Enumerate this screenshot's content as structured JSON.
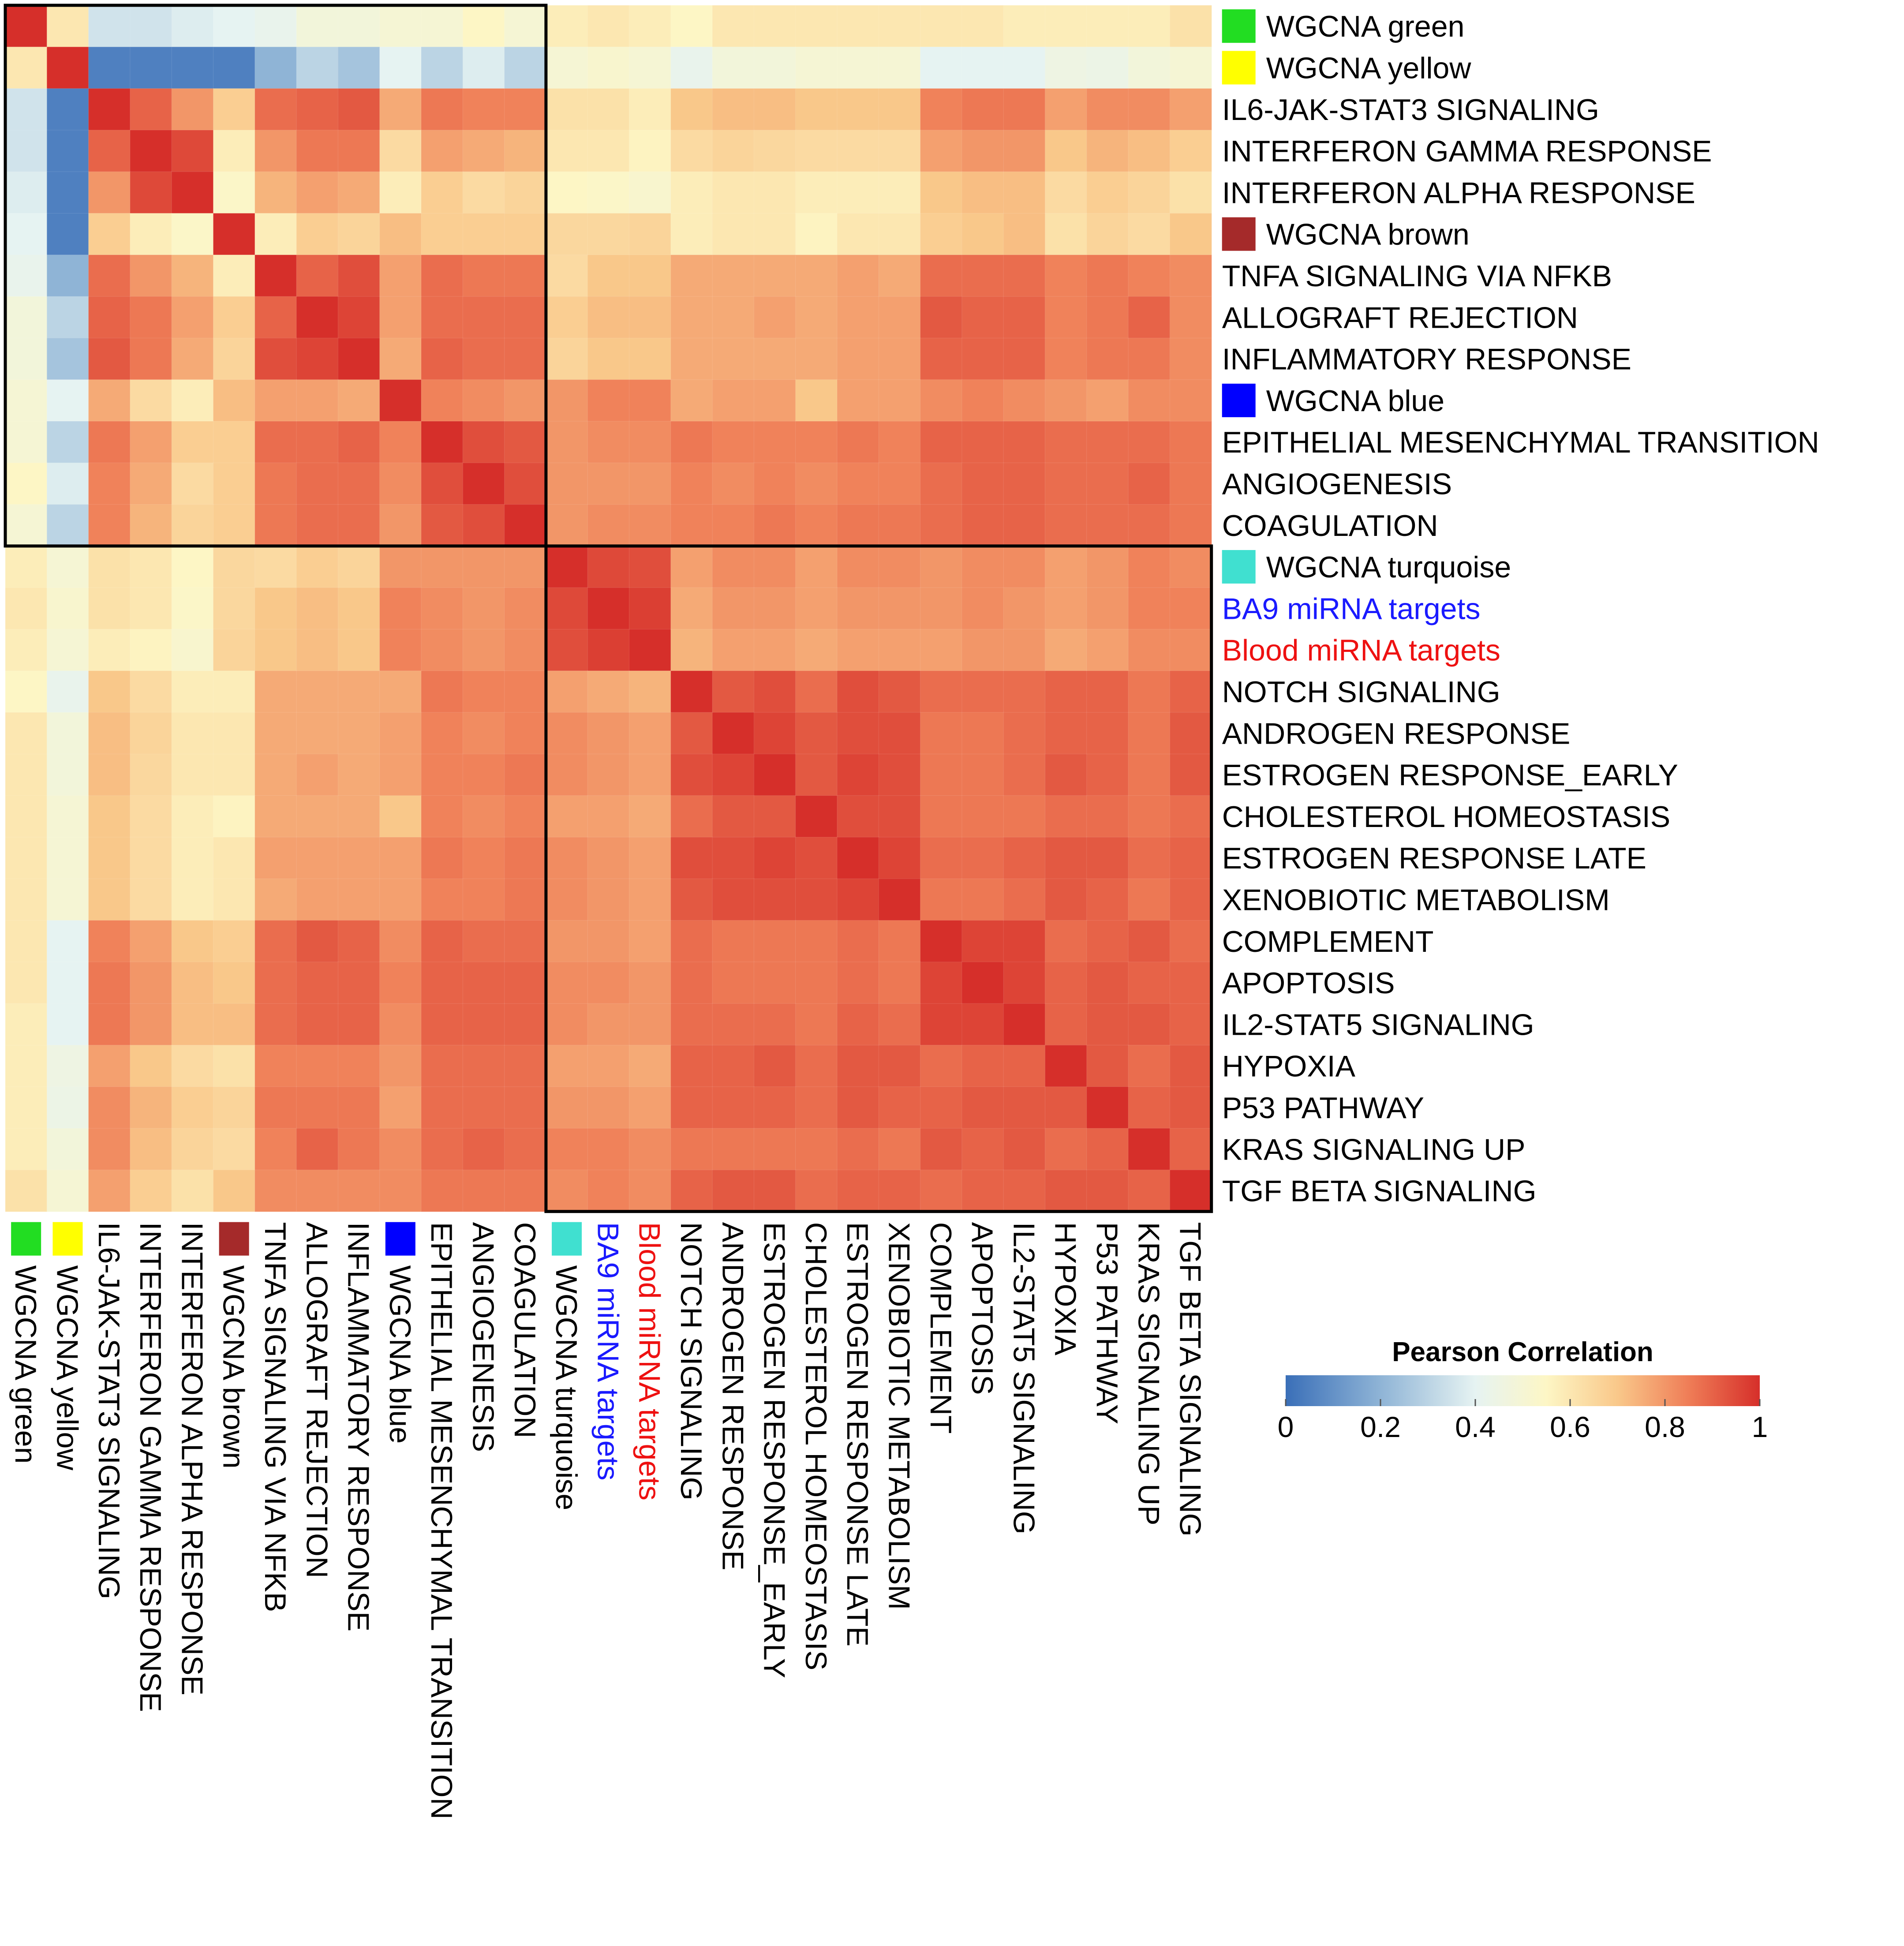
{
  "chart_data": {
    "type": "heatmap",
    "title": "",
    "labels": [
      {
        "text": "WGCNA green",
        "text_color": "#000000",
        "swatch": "#22dd22",
        "group": "A"
      },
      {
        "text": "WGCNA yellow",
        "text_color": "#000000",
        "swatch": "#ffff00",
        "group": "A"
      },
      {
        "text": "IL6-JAK-STAT3 SIGNALING",
        "text_color": "#000000",
        "swatch": null,
        "group": "A"
      },
      {
        "text": "INTERFERON GAMMA RESPONSE",
        "text_color": "#000000",
        "swatch": null,
        "group": "A"
      },
      {
        "text": "INTERFERON ALPHA RESPONSE",
        "text_color": "#000000",
        "swatch": null,
        "group": "A"
      },
      {
        "text": "WGCNA brown",
        "text_color": "#000000",
        "swatch": "#a52a2a",
        "group": "A"
      },
      {
        "text": "TNFA SIGNALING VIA NFKB",
        "text_color": "#000000",
        "swatch": null,
        "group": "A"
      },
      {
        "text": "ALLOGRAFT REJECTION",
        "text_color": "#000000",
        "swatch": null,
        "group": "A"
      },
      {
        "text": "INFLAMMATORY RESPONSE",
        "text_color": "#000000",
        "swatch": null,
        "group": "A"
      },
      {
        "text": "WGCNA blue",
        "text_color": "#000000",
        "swatch": "#0000ff",
        "group": "A"
      },
      {
        "text": "EPITHELIAL MESENCHYMAL TRANSITION",
        "text_color": "#000000",
        "swatch": null,
        "group": "A"
      },
      {
        "text": "ANGIOGENESIS",
        "text_color": "#000000",
        "swatch": null,
        "group": "A"
      },
      {
        "text": "COAGULATION",
        "text_color": "#000000",
        "swatch": null,
        "group": "A"
      },
      {
        "text": "WGCNA turquoise",
        "text_color": "#000000",
        "swatch": "#40e0d0",
        "group": "B"
      },
      {
        "text": "BA9 miRNA targets",
        "text_color": "#1a1aff",
        "swatch": null,
        "group": "B"
      },
      {
        "text": "Blood miRNA targets",
        "text_color": "#ee1111",
        "swatch": null,
        "group": "B"
      },
      {
        "text": "NOTCH SIGNALING",
        "text_color": "#000000",
        "swatch": null,
        "group": "B"
      },
      {
        "text": "ANDROGEN RESPONSE",
        "text_color": "#000000",
        "swatch": null,
        "group": "B"
      },
      {
        "text": "ESTROGEN RESPONSE_EARLY",
        "text_color": "#000000",
        "swatch": null,
        "group": "B"
      },
      {
        "text": "CHOLESTEROL HOMEOSTASIS",
        "text_color": "#000000",
        "swatch": null,
        "group": "B"
      },
      {
        "text": "ESTROGEN RESPONSE LATE",
        "text_color": "#000000",
        "swatch": null,
        "group": "B"
      },
      {
        "text": "XENOBIOTIC METABOLISM",
        "text_color": "#000000",
        "swatch": null,
        "group": "B"
      },
      {
        "text": "COMPLEMENT",
        "text_color": "#000000",
        "swatch": null,
        "group": "B"
      },
      {
        "text": "APOPTOSIS",
        "text_color": "#000000",
        "swatch": null,
        "group": "B"
      },
      {
        "text": "IL2-STAT5 SIGNALING",
        "text_color": "#000000",
        "swatch": null,
        "group": "B"
      },
      {
        "text": "HYPOXIA",
        "text_color": "#000000",
        "swatch": null,
        "group": "B"
      },
      {
        "text": "P53 PATHWAY",
        "text_color": "#000000",
        "swatch": null,
        "group": "B"
      },
      {
        "text": "KRAS SIGNALING UP",
        "text_color": "#000000",
        "swatch": null,
        "group": "B"
      },
      {
        "text": "TGF BETA SIGNALING",
        "text_color": "#000000",
        "swatch": null,
        "group": "B"
      }
    ],
    "matrix": [
      [
        1.0,
        0.6,
        0.35,
        0.35,
        0.38,
        0.4,
        0.42,
        0.48,
        0.48,
        0.5,
        0.5,
        0.55,
        0.5,
        0.58,
        0.6,
        0.58,
        0.55,
        0.6,
        0.6,
        0.6,
        0.6,
        0.6,
        0.6,
        0.6,
        0.58,
        0.58,
        0.58,
        0.58,
        0.62
      ],
      [
        0.6,
        1.0,
        0.05,
        0.05,
        0.05,
        0.05,
        0.2,
        0.3,
        0.25,
        0.4,
        0.3,
        0.38,
        0.3,
        0.5,
        0.52,
        0.5,
        0.42,
        0.48,
        0.48,
        0.5,
        0.5,
        0.5,
        0.4,
        0.4,
        0.4,
        0.45,
        0.44,
        0.48,
        0.5
      ],
      [
        0.35,
        0.05,
        1.0,
        0.9,
        0.8,
        0.68,
        0.88,
        0.9,
        0.92,
        0.76,
        0.86,
        0.84,
        0.84,
        0.62,
        0.62,
        0.58,
        0.7,
        0.72,
        0.72,
        0.7,
        0.7,
        0.7,
        0.84,
        0.86,
        0.86,
        0.78,
        0.82,
        0.82,
        0.78
      ],
      [
        0.35,
        0.05,
        0.9,
        1.0,
        0.95,
        0.58,
        0.8,
        0.86,
        0.86,
        0.64,
        0.78,
        0.76,
        0.74,
        0.6,
        0.6,
        0.56,
        0.64,
        0.66,
        0.65,
        0.64,
        0.64,
        0.64,
        0.78,
        0.8,
        0.8,
        0.7,
        0.74,
        0.72,
        0.68
      ],
      [
        0.38,
        0.05,
        0.8,
        0.95,
        1.0,
        0.54,
        0.74,
        0.78,
        0.76,
        0.58,
        0.68,
        0.64,
        0.66,
        0.55,
        0.54,
        0.52,
        0.58,
        0.6,
        0.6,
        0.58,
        0.58,
        0.58,
        0.7,
        0.72,
        0.72,
        0.64,
        0.68,
        0.66,
        0.62
      ],
      [
        0.4,
        0.05,
        0.68,
        0.58,
        0.54,
        1.0,
        0.58,
        0.68,
        0.66,
        0.72,
        0.68,
        0.68,
        0.68,
        0.65,
        0.65,
        0.66,
        0.58,
        0.6,
        0.6,
        0.56,
        0.6,
        0.6,
        0.68,
        0.7,
        0.72,
        0.62,
        0.66,
        0.64,
        0.7
      ],
      [
        0.42,
        0.2,
        0.88,
        0.8,
        0.74,
        0.58,
        1.0,
        0.9,
        0.94,
        0.78,
        0.88,
        0.86,
        0.86,
        0.64,
        0.7,
        0.7,
        0.76,
        0.76,
        0.76,
        0.76,
        0.78,
        0.76,
        0.88,
        0.88,
        0.88,
        0.84,
        0.86,
        0.84,
        0.82
      ],
      [
        0.48,
        0.3,
        0.9,
        0.86,
        0.78,
        0.68,
        0.9,
        1.0,
        0.96,
        0.78,
        0.88,
        0.88,
        0.88,
        0.68,
        0.72,
        0.72,
        0.76,
        0.76,
        0.78,
        0.76,
        0.78,
        0.78,
        0.92,
        0.9,
        0.9,
        0.84,
        0.86,
        0.9,
        0.82
      ],
      [
        0.48,
        0.25,
        0.92,
        0.86,
        0.76,
        0.66,
        0.94,
        0.96,
        1.0,
        0.76,
        0.9,
        0.88,
        0.88,
        0.66,
        0.7,
        0.7,
        0.76,
        0.76,
        0.76,
        0.76,
        0.78,
        0.78,
        0.9,
        0.9,
        0.9,
        0.84,
        0.86,
        0.86,
        0.82
      ],
      [
        0.5,
        0.4,
        0.76,
        0.64,
        0.58,
        0.72,
        0.78,
        0.78,
        0.76,
        1.0,
        0.84,
        0.82,
        0.8,
        0.8,
        0.84,
        0.84,
        0.76,
        0.78,
        0.78,
        0.7,
        0.78,
        0.78,
        0.82,
        0.84,
        0.82,
        0.8,
        0.78,
        0.82,
        0.82
      ],
      [
        0.5,
        0.3,
        0.86,
        0.78,
        0.68,
        0.68,
        0.88,
        0.88,
        0.9,
        0.84,
        1.0,
        0.94,
        0.92,
        0.8,
        0.82,
        0.82,
        0.86,
        0.84,
        0.84,
        0.84,
        0.86,
        0.84,
        0.9,
        0.9,
        0.9,
        0.88,
        0.88,
        0.88,
        0.86
      ],
      [
        0.55,
        0.38,
        0.84,
        0.76,
        0.64,
        0.68,
        0.86,
        0.88,
        0.88,
        0.82,
        0.94,
        1.0,
        0.94,
        0.8,
        0.8,
        0.8,
        0.84,
        0.82,
        0.84,
        0.82,
        0.84,
        0.84,
        0.88,
        0.9,
        0.9,
        0.88,
        0.88,
        0.9,
        0.86
      ],
      [
        0.5,
        0.3,
        0.84,
        0.74,
        0.66,
        0.68,
        0.86,
        0.88,
        0.88,
        0.8,
        0.92,
        0.94,
        1.0,
        0.8,
        0.82,
        0.82,
        0.84,
        0.84,
        0.86,
        0.84,
        0.86,
        0.86,
        0.88,
        0.9,
        0.9,
        0.88,
        0.88,
        0.88,
        0.86
      ],
      [
        0.58,
        0.5,
        0.62,
        0.6,
        0.55,
        0.65,
        0.64,
        0.68,
        0.66,
        0.8,
        0.8,
        0.8,
        0.8,
        1.0,
        0.95,
        0.94,
        0.78,
        0.82,
        0.82,
        0.78,
        0.82,
        0.82,
        0.8,
        0.82,
        0.82,
        0.78,
        0.8,
        0.84,
        0.82
      ],
      [
        0.6,
        0.52,
        0.62,
        0.6,
        0.54,
        0.65,
        0.7,
        0.72,
        0.7,
        0.84,
        0.82,
        0.8,
        0.82,
        0.95,
        1.0,
        0.97,
        0.76,
        0.8,
        0.8,
        0.78,
        0.8,
        0.8,
        0.8,
        0.82,
        0.8,
        0.78,
        0.8,
        0.84,
        0.84
      ],
      [
        0.58,
        0.5,
        0.58,
        0.56,
        0.52,
        0.66,
        0.7,
        0.72,
        0.7,
        0.84,
        0.82,
        0.8,
        0.82,
        0.94,
        0.97,
        1.0,
        0.74,
        0.78,
        0.78,
        0.76,
        0.78,
        0.78,
        0.78,
        0.8,
        0.8,
        0.76,
        0.78,
        0.82,
        0.82
      ],
      [
        0.55,
        0.42,
        0.7,
        0.64,
        0.58,
        0.58,
        0.76,
        0.76,
        0.76,
        0.76,
        0.86,
        0.84,
        0.84,
        0.78,
        0.76,
        0.74,
        1.0,
        0.92,
        0.94,
        0.88,
        0.94,
        0.92,
        0.88,
        0.88,
        0.88,
        0.9,
        0.9,
        0.86,
        0.9
      ],
      [
        0.6,
        0.48,
        0.72,
        0.66,
        0.6,
        0.6,
        0.76,
        0.76,
        0.76,
        0.78,
        0.84,
        0.82,
        0.84,
        0.82,
        0.8,
        0.78,
        0.92,
        1.0,
        0.96,
        0.92,
        0.94,
        0.94,
        0.86,
        0.86,
        0.88,
        0.9,
        0.9,
        0.86,
        0.92
      ],
      [
        0.6,
        0.48,
        0.72,
        0.65,
        0.6,
        0.6,
        0.76,
        0.78,
        0.76,
        0.78,
        0.84,
        0.84,
        0.86,
        0.82,
        0.8,
        0.78,
        0.94,
        0.96,
        1.0,
        0.92,
        0.96,
        0.94,
        0.86,
        0.86,
        0.88,
        0.92,
        0.9,
        0.86,
        0.92
      ],
      [
        0.6,
        0.5,
        0.7,
        0.64,
        0.58,
        0.56,
        0.76,
        0.76,
        0.76,
        0.7,
        0.84,
        0.82,
        0.84,
        0.78,
        0.78,
        0.76,
        0.88,
        0.92,
        0.92,
        1.0,
        0.94,
        0.94,
        0.86,
        0.86,
        0.86,
        0.88,
        0.88,
        0.86,
        0.88
      ],
      [
        0.6,
        0.5,
        0.7,
        0.64,
        0.58,
        0.6,
        0.78,
        0.78,
        0.78,
        0.78,
        0.86,
        0.84,
        0.86,
        0.82,
        0.8,
        0.78,
        0.94,
        0.94,
        0.96,
        0.94,
        1.0,
        0.96,
        0.88,
        0.88,
        0.9,
        0.92,
        0.92,
        0.88,
        0.9
      ],
      [
        0.6,
        0.5,
        0.7,
        0.64,
        0.58,
        0.6,
        0.76,
        0.78,
        0.78,
        0.78,
        0.84,
        0.84,
        0.86,
        0.82,
        0.8,
        0.78,
        0.92,
        0.94,
        0.94,
        0.94,
        0.96,
        1.0,
        0.86,
        0.86,
        0.88,
        0.92,
        0.9,
        0.86,
        0.9
      ],
      [
        0.6,
        0.4,
        0.84,
        0.78,
        0.7,
        0.68,
        0.88,
        0.92,
        0.9,
        0.82,
        0.9,
        0.88,
        0.88,
        0.8,
        0.8,
        0.78,
        0.88,
        0.86,
        0.86,
        0.86,
        0.88,
        0.86,
        1.0,
        0.96,
        0.96,
        0.88,
        0.9,
        0.92,
        0.88
      ],
      [
        0.6,
        0.4,
        0.86,
        0.8,
        0.72,
        0.7,
        0.88,
        0.9,
        0.9,
        0.84,
        0.9,
        0.9,
        0.9,
        0.82,
        0.82,
        0.8,
        0.88,
        0.86,
        0.86,
        0.86,
        0.88,
        0.86,
        0.96,
        1.0,
        0.96,
        0.9,
        0.92,
        0.9,
        0.9
      ],
      [
        0.58,
        0.4,
        0.86,
        0.8,
        0.72,
        0.72,
        0.88,
        0.9,
        0.9,
        0.82,
        0.9,
        0.9,
        0.9,
        0.82,
        0.8,
        0.8,
        0.88,
        0.88,
        0.88,
        0.86,
        0.9,
        0.88,
        0.96,
        0.96,
        1.0,
        0.9,
        0.92,
        0.92,
        0.9
      ],
      [
        0.58,
        0.45,
        0.78,
        0.7,
        0.64,
        0.62,
        0.84,
        0.84,
        0.84,
        0.8,
        0.88,
        0.88,
        0.88,
        0.78,
        0.78,
        0.76,
        0.9,
        0.9,
        0.92,
        0.88,
        0.92,
        0.92,
        0.88,
        0.9,
        0.9,
        1.0,
        0.92,
        0.88,
        0.92
      ],
      [
        0.58,
        0.44,
        0.82,
        0.74,
        0.68,
        0.66,
        0.86,
        0.86,
        0.86,
        0.78,
        0.88,
        0.88,
        0.88,
        0.8,
        0.8,
        0.78,
        0.9,
        0.9,
        0.9,
        0.88,
        0.92,
        0.9,
        0.9,
        0.92,
        0.92,
        0.92,
        1.0,
        0.9,
        0.92
      ],
      [
        0.58,
        0.48,
        0.82,
        0.72,
        0.66,
        0.64,
        0.84,
        0.9,
        0.86,
        0.82,
        0.88,
        0.9,
        0.88,
        0.84,
        0.84,
        0.82,
        0.86,
        0.86,
        0.86,
        0.86,
        0.88,
        0.86,
        0.92,
        0.9,
        0.92,
        0.88,
        0.9,
        1.0,
        0.9
      ],
      [
        0.62,
        0.5,
        0.78,
        0.68,
        0.62,
        0.7,
        0.82,
        0.82,
        0.82,
        0.82,
        0.86,
        0.86,
        0.86,
        0.82,
        0.84,
        0.82,
        0.9,
        0.92,
        0.92,
        0.88,
        0.9,
        0.9,
        0.88,
        0.9,
        0.9,
        0.92,
        0.92,
        0.9,
        1.0
      ]
    ],
    "cluster_boxes": [
      {
        "from": 0,
        "to": 12
      },
      {
        "from": 13,
        "to": 28
      }
    ],
    "colorbar": {
      "title": "Pearson Correlation",
      "range": [
        0,
        1
      ],
      "ticks": [
        {
          "value": 0,
          "label": "0"
        },
        {
          "value": 0.2,
          "label": "0.2"
        },
        {
          "value": 0.4,
          "label": "0.4"
        },
        {
          "value": 0.6,
          "label": "0.6"
        },
        {
          "value": 0.8,
          "label": "0.8"
        },
        {
          "value": 1,
          "label": "1"
        }
      ],
      "stops": [
        {
          "value": 0.0,
          "color": "#3a6fb8"
        },
        {
          "value": 0.2,
          "color": "#8fb4d6"
        },
        {
          "value": 0.4,
          "color": "#e6f3f2"
        },
        {
          "value": 0.55,
          "color": "#fdf6c5"
        },
        {
          "value": 0.7,
          "color": "#f9c88a"
        },
        {
          "value": 0.85,
          "color": "#ef7d57"
        },
        {
          "value": 1.0,
          "color": "#d62f2a"
        }
      ]
    }
  }
}
